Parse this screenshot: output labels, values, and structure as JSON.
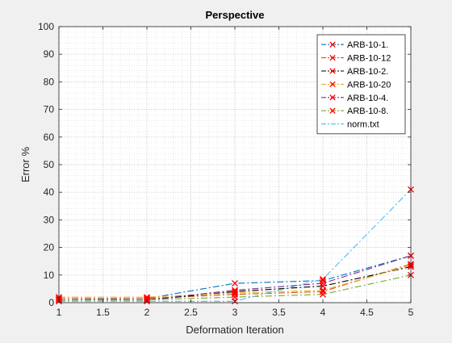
{
  "chart_data": {
    "type": "line",
    "title": "Perspective",
    "xlabel": "Deformation Iteration",
    "ylabel": "Error %",
    "xlim": [
      1,
      5
    ],
    "ylim": [
      0,
      100
    ],
    "xticks": [
      1,
      1.5,
      2,
      2.5,
      3,
      3.5,
      4,
      4.5,
      5
    ],
    "xtick_labels": [
      "1",
      "1.5",
      "2",
      "2.5",
      "3",
      "3.5",
      "4",
      "4.5",
      "5"
    ],
    "yticks": [
      0,
      10,
      20,
      30,
      40,
      50,
      60,
      70,
      80,
      90,
      100
    ],
    "ytick_labels": [
      "0",
      "10",
      "20",
      "30",
      "40",
      "50",
      "60",
      "70",
      "80",
      "90",
      "100"
    ],
    "grid": true,
    "minor_grid": true,
    "legend_position": "top-right",
    "x": [
      1,
      2,
      3,
      4,
      5
    ],
    "series": [
      {
        "name": "ARB-10-1.",
        "color": "#0072BD",
        "marker": "x",
        "values": [
          1.0,
          1.5,
          7.0,
          8.0,
          17.0
        ]
      },
      {
        "name": "ARB-10-12",
        "color": "#D95319",
        "marker": "x",
        "values": [
          1.5,
          1.5,
          3.0,
          4.0,
          14.0
        ]
      },
      {
        "name": "ARB-10-2.",
        "color": "#000000",
        "marker": "x",
        "values": [
          1.0,
          1.0,
          4.0,
          6.0,
          13.0
        ]
      },
      {
        "name": "ARB-10-20",
        "color": "#EDB120",
        "marker": "x",
        "values": [
          2.0,
          2.0,
          3.5,
          4.5,
          13.5
        ]
      },
      {
        "name": "ARB-10-4.",
        "color": "#7E2F8E",
        "marker": "x",
        "values": [
          1.0,
          1.0,
          4.5,
          7.0,
          17.0
        ]
      },
      {
        "name": "ARB-10-8.",
        "color": "#77AC30",
        "marker": "x",
        "values": [
          1.0,
          1.0,
          2.0,
          3.0,
          10.0
        ]
      },
      {
        "name": "norm.txt",
        "color": "#4DBEEE",
        "marker": "none",
        "values": [
          0.5,
          0.5,
          0.5,
          8.5,
          41.0
        ]
      }
    ],
    "marker_color": "#FF0000"
  }
}
